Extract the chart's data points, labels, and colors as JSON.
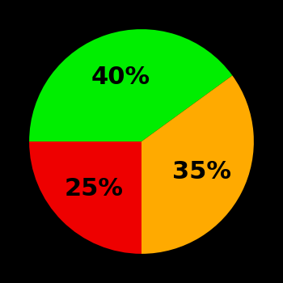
{
  "slices": [
    40,
    35,
    25
  ],
  "labels": [
    "40%",
    "35%",
    "25%"
  ],
  "colors": [
    "#00ee00",
    "#ffaa00",
    "#ee0000"
  ],
  "background_color": "#000000",
  "label_fontsize": 22,
  "label_fontweight": "bold",
  "label_color": "#000000",
  "startangle": 90,
  "counterclock": true
}
